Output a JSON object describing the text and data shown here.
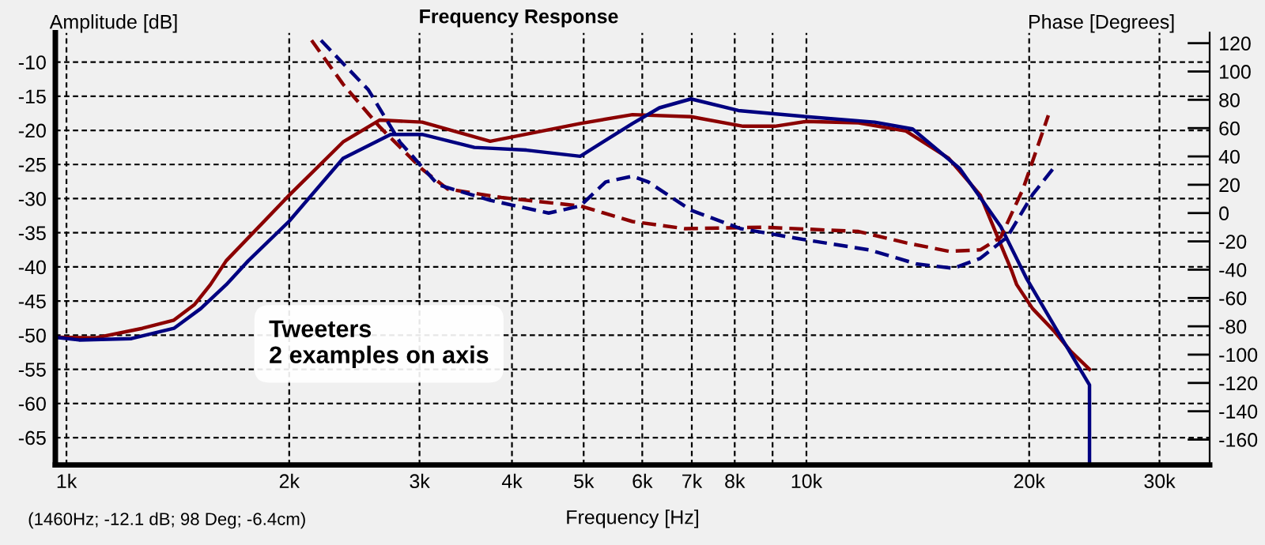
{
  "chart_data": {
    "type": "line",
    "title": "Frequency Response",
    "xlabel": "Frequency [Hz]",
    "ylabel": "Amplitude [dB]",
    "y2label": "Phase [Degrees]",
    "annotations": [
      "Tweeters\n2 examples on axis",
      "(1460Hz; -12.1 dB; 98 Deg; -6.4cm)"
    ],
    "log": "x",
    "grid": true,
    "line_style": "solid",
    "xlim": [
      966,
      35070
    ],
    "ylim": [
      -69,
      -5.7
    ],
    "y2lim": [
      -177.9,
      127.4
    ],
    "xticks": [
      {
        "value": 1000,
        "label": "1k"
      },
      {
        "value": 2000,
        "label": "2k"
      },
      {
        "value": 3000,
        "label": "3k"
      },
      {
        "value": 4000,
        "label": "4k"
      },
      {
        "value": 5000,
        "label": "5k"
      },
      {
        "value": 6000,
        "label": "6k"
      },
      {
        "value": 7000,
        "label": "7k"
      },
      {
        "value": 8000,
        "label": "8k"
      },
      {
        "value": 9000,
        "label": null
      },
      {
        "value": 10000,
        "label": "10k"
      },
      {
        "value": 20000,
        "label": "20k"
      },
      {
        "value": 30000,
        "label": "30k"
      }
    ],
    "yticks": [
      -10,
      -15,
      -20,
      -25,
      -30,
      -35,
      -40,
      -45,
      -50,
      -55,
      -60,
      -65
    ],
    "y2ticks": [
      120,
      100,
      80,
      60,
      40,
      20,
      0,
      -20,
      -40,
      -60,
      -80,
      -100,
      -120,
      -140,
      -160
    ],
    "series": [
      {
        "color": "#8b0000",
        "x": [
          966,
          1093,
          1266,
          1397,
          1490,
          1565,
          1644,
          2000,
          2365,
          2649,
          3025,
          3738,
          4947,
          5821,
          6982,
          8212,
          9065,
          10000,
          11760,
          13630,
          15570,
          17180,
          18960,
          19240,
          20210,
          21650,
          22740,
          24130
        ],
        "values": [
          -50.3,
          -50.4,
          -49.0,
          -47.8,
          -45.5,
          -42.6,
          -39.1,
          -29.5,
          -21.7,
          -18.5,
          -18.8,
          -21.6,
          -19.0,
          -17.7,
          -18.0,
          -19.4,
          -19.4,
          -18.7,
          -18.9,
          -20.1,
          -24.1,
          -29.5,
          -40.7,
          -42.6,
          -46.1,
          -49.5,
          -52.3,
          -55.0
        ]
      },
      {
        "color": "#000080",
        "x": [
          966,
          1040,
          1224,
          1397,
          1519,
          1644,
          1761,
          2000,
          2365,
          2742,
          3025,
          3558,
          4185,
          4947,
          5821,
          6329,
          6982,
          8092,
          10000,
          12360,
          13910,
          16120,
          18310,
          19860,
          21970,
          24130,
          24131
        ],
        "values": [
          -50.3,
          -50.7,
          -50.5,
          -49.0,
          -46.1,
          -42.6,
          -39.1,
          -33.3,
          -24.1,
          -20.6,
          -20.6,
          -22.5,
          -22.9,
          -23.8,
          -19.0,
          -16.7,
          -15.4,
          -17.1,
          -18.0,
          -18.8,
          -19.8,
          -25.6,
          -34.1,
          -41.8,
          -49.9,
          -57.3,
          -69
        ]
      },
      {
        "color": "#8b0000",
        "axis": "y2",
        "line_style": "dashed",
        "x": [
          2144,
          2365,
          2649,
          3025,
          3273,
          3869,
          4947,
          5821,
          6846,
          8757,
          11760,
          13630,
          15570,
          17180,
          18310,
          19620,
          21230
        ],
        "values": [
          122,
          91,
          61,
          31,
          17,
          11,
          5,
          -6,
          -11,
          -10,
          -13,
          -21,
          -27,
          -26,
          -17,
          17,
          69
        ]
      },
      {
        "color": "#000080",
        "axis": "y2",
        "line_style": "dashed",
        "x": [
          2208,
          2559,
          2824,
          3178,
          3738,
          4484,
          4947,
          5354,
          5821,
          6114,
          6982,
          8146,
          10000,
          12150,
          14110,
          15800,
          17180,
          18680,
          20210,
          21750
        ],
        "values": [
          122,
          87,
          50,
          20,
          9,
          0,
          5,
          22,
          26,
          22,
          2,
          -11,
          -19,
          -26,
          -36,
          -39,
          -32,
          -17,
          13,
          34
        ]
      }
    ]
  }
}
